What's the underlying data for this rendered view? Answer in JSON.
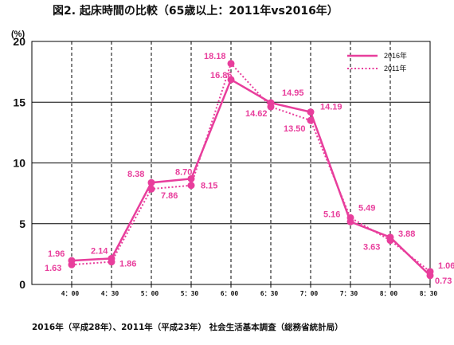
{
  "title": "図2.  起床時間の比較（65歳以上：2011年vs2016年）",
  "footer": "2016年（平成28年）、2011年（平成23年）     社会生活基本調査（総務省統計局）",
  "chart_data": {
    "type": "line",
    "y_unit_label": "(%)",
    "categories": [
      "4：00",
      "4：30",
      "5：00",
      "5：30",
      "6：00",
      "6：30",
      "7：00",
      "7：30",
      "8：00",
      "8：30"
    ],
    "ylim": [
      0,
      20
    ],
    "yticks": [
      0,
      5,
      10,
      15,
      20
    ],
    "grid": true,
    "legend_position": "top-right",
    "color": "#e83e9c",
    "series": [
      {
        "name": "2016年",
        "style": "solid",
        "values": [
          1.96,
          2.14,
          8.38,
          8.7,
          16.86,
          14.95,
          14.19,
          5.16,
          3.88,
          0.73
        ],
        "labels": [
          "1.96",
          "2.14",
          "8.38",
          "8.70",
          "16.86",
          "14.95",
          "14.19",
          "5.16",
          "3.88",
          "0.73"
        ]
      },
      {
        "name": "2011年",
        "style": "dotted",
        "values": [
          1.63,
          1.86,
          7.86,
          8.15,
          18.18,
          14.62,
          13.5,
          5.49,
          3.63,
          1.06
        ],
        "labels": [
          "1.63",
          "1.86",
          "7.86",
          "8.15",
          "18.18",
          "14.62",
          "13.50",
          "5.49",
          "3.63",
          "1.06"
        ]
      }
    ]
  }
}
